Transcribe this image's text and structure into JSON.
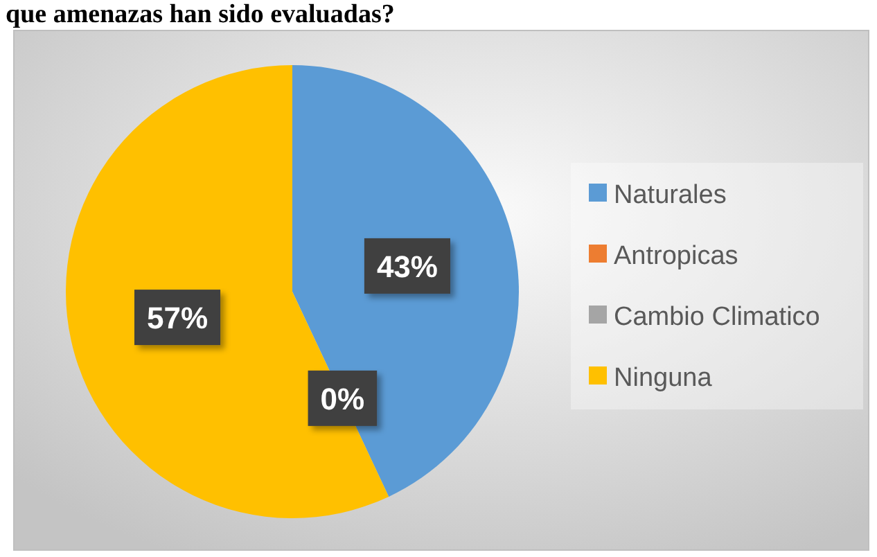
{
  "chart_data": {
    "type": "pie",
    "title": "que amenazas han sido evaluadas?",
    "categories": [
      "Naturales",
      "Antropicas",
      "Cambio Climatico",
      "Ninguna"
    ],
    "values": [
      43,
      0,
      0,
      57
    ],
    "colors": [
      "#5b9bd5",
      "#ed7d31",
      "#a5a5a5",
      "#ffc000"
    ],
    "value_labels": [
      "43%",
      "0%",
      null,
      "57%"
    ],
    "legend": "right"
  }
}
